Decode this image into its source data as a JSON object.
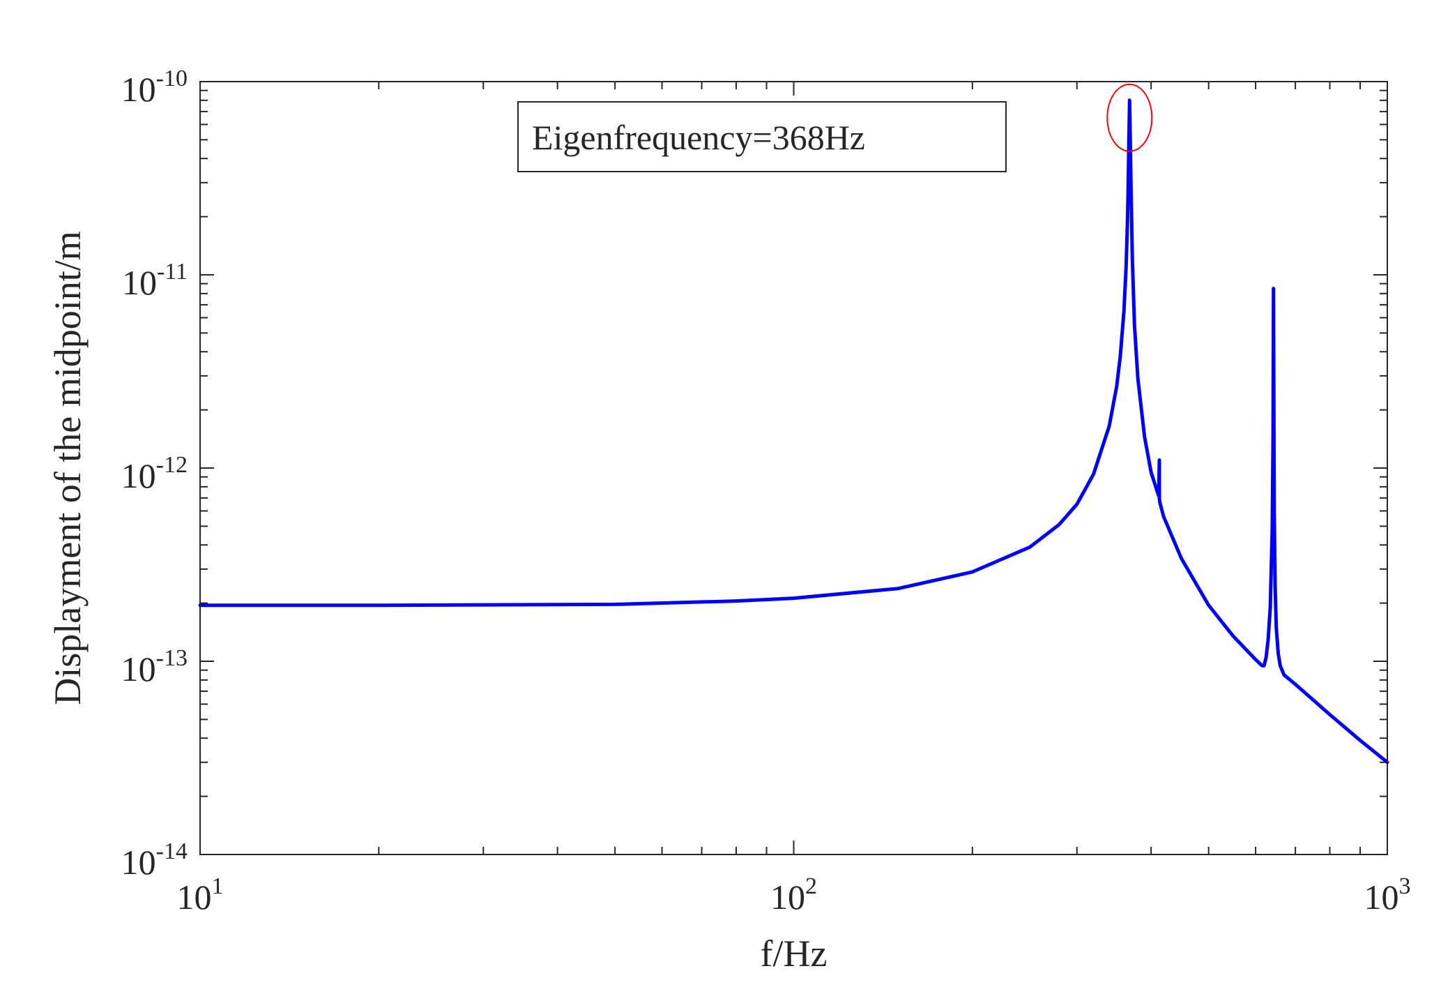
{
  "chart_data": {
    "type": "line",
    "title": "",
    "xlabel": "f/Hz",
    "ylabel": "Displayment of the midpoint/m",
    "x_scale": "log",
    "y_scale": "log",
    "xlim": [
      10,
      1000
    ],
    "ylim": [
      1e-14,
      1e-10
    ],
    "grid": false,
    "legend": "none",
    "x_ticks": [
      {
        "base": "10",
        "exp": "1",
        "value": 10
      },
      {
        "base": "10",
        "exp": "2",
        "value": 100
      },
      {
        "base": "10",
        "exp": "3",
        "value": 1000
      }
    ],
    "y_ticks": [
      {
        "base": "10",
        "exp": "-14",
        "value": 1e-14
      },
      {
        "base": "10",
        "exp": "-13",
        "value": 1e-13
      },
      {
        "base": "10",
        "exp": "-12",
        "value": 1e-12
      },
      {
        "base": "10",
        "exp": "-11",
        "value": 1e-11
      },
      {
        "base": "10",
        "exp": "-10",
        "value": 1e-10
      }
    ],
    "series": [
      {
        "color": "#0000ff",
        "x": [
          10,
          20,
          50,
          80,
          100,
          150,
          200,
          250,
          280,
          300,
          320,
          340,
          350,
          355,
          360,
          363,
          365,
          366,
          367,
          368,
          369,
          370,
          372,
          375,
          380,
          390,
          400,
          410,
          412,
          413,
          413,
          414,
          420,
          450,
          500,
          550,
          600,
          615,
          620,
          625,
          630,
          635,
          640,
          642,
          643,
          644,
          645,
          647,
          650,
          655,
          660,
          670,
          700,
          800,
          900,
          1000
        ],
        "y": [
          1.95e-13,
          1.95e-13,
          1.97e-13,
          2.05e-13,
          2.12e-13,
          2.38e-13,
          2.9e-13,
          3.9e-13,
          5.1e-13,
          6.5e-13,
          9.3e-13,
          1.65e-12,
          2.65e-12,
          3.8e-12,
          6.5e-12,
          1.1e-11,
          1.9e-11,
          2.9e-11,
          5e-11,
          8e-11,
          5e-11,
          2.9e-11,
          1.2e-11,
          5.5e-12,
          2.9e-12,
          1.45e-12,
          9.5e-13,
          7.5e-13,
          7.2e-13,
          1.1e-12,
          6.9e-13,
          6.6e-13,
          5.6e-13,
          3.4e-13,
          1.95e-13,
          1.35e-13,
          1.02e-13,
          9.5e-14,
          9.5e-14,
          1.05e-13,
          1.3e-13,
          1.9e-13,
          5e-13,
          1.5e-12,
          8.5e-12,
          2e-12,
          6e-13,
          2.5e-13,
          1.5e-13,
          1.1e-13,
          9.5e-14,
          8.5e-14,
          7.6e-14,
          5.3e-14,
          3.9e-14,
          3e-14
        ]
      }
    ],
    "annotations": [
      {
        "text": "Eigenfrequency=368Hz",
        "type": "text-box"
      },
      {
        "type": "ellipse-marker",
        "color": "#ff0000",
        "x": 368,
        "y": 6.5e-11
      }
    ]
  }
}
